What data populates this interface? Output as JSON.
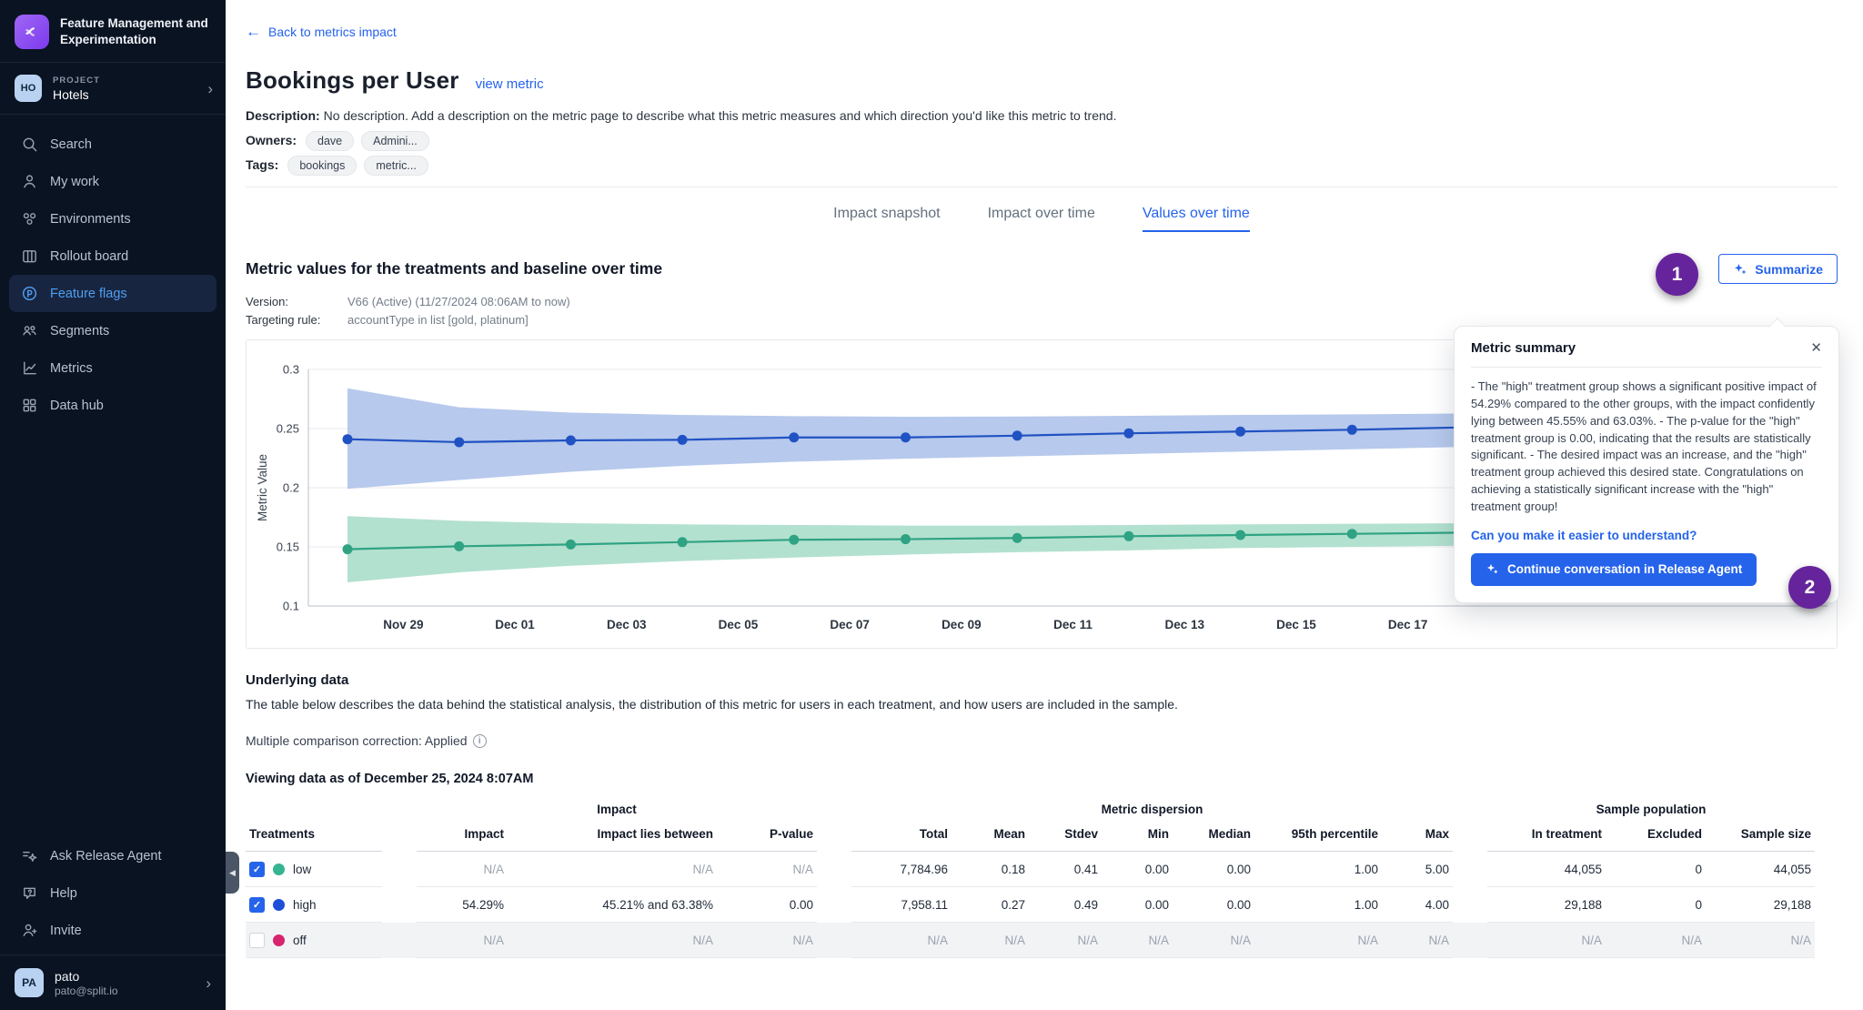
{
  "colors": {
    "accent_blue": "#2563eb",
    "sidebar_bg": "#0a1322",
    "sidebar_active_bg": "#182540",
    "sidebar_active_text": "#4f9ff2",
    "annotation_purple": "#66249c",
    "treatment_low": "#35b492",
    "treatment_high": "#1d4fd7",
    "treatment_off": "#d6246e"
  },
  "sidebar": {
    "brand": "Feature Management and Experimentation",
    "brand_icon": "split-logo-icon",
    "project": {
      "badge": "HO",
      "label": "PROJECT",
      "name": "Hotels",
      "chevron_icon": "chevron-right-icon"
    },
    "nav": [
      {
        "icon": "search-icon",
        "label": "Search",
        "active": false
      },
      {
        "icon": "my-work-icon",
        "label": "My work",
        "active": false
      },
      {
        "icon": "environments-icon",
        "label": "Environments",
        "active": false
      },
      {
        "icon": "rollout-board-icon",
        "label": "Rollout board",
        "active": false
      },
      {
        "icon": "feature-flags-icon",
        "label": "Feature flags",
        "active": true
      },
      {
        "icon": "segments-icon",
        "label": "Segments",
        "active": false
      },
      {
        "icon": "metrics-icon",
        "label": "Metrics",
        "active": false
      },
      {
        "icon": "data-hub-icon",
        "label": "Data hub",
        "active": false
      }
    ],
    "footer_nav": [
      {
        "icon": "ask-agent-icon",
        "label": "Ask Release Agent"
      },
      {
        "icon": "help-icon",
        "label": "Help"
      },
      {
        "icon": "invite-icon",
        "label": "Invite"
      }
    ],
    "user": {
      "initials": "PA",
      "name": "pato",
      "email": "pato@split.io"
    }
  },
  "header": {
    "back_link": "Back to metrics impact",
    "title": "Bookings per User",
    "view_metric": "view metric",
    "description_label": "Description:",
    "description": "No description. Add a description on the metric page to describe what this metric measures and which direction you'd like this metric to trend.",
    "owners_label": "Owners:",
    "owners": [
      "dave",
      "Admini..."
    ],
    "tags_label": "Tags:",
    "tags": [
      "bookings",
      "metric..."
    ]
  },
  "tabs": [
    {
      "label": "Impact snapshot",
      "active": false
    },
    {
      "label": "Impact over time",
      "active": false
    },
    {
      "label": "Values over time",
      "active": true
    }
  ],
  "section": {
    "title": "Metric values for the treatments and baseline over time",
    "summarize_label": "Summarize",
    "version_label": "Version:",
    "version_value": "V66 (Active) (11/27/2024 08:06AM to now)",
    "targeting_label": "Targeting rule:",
    "targeting_value": "accountType in list [gold, platinum]"
  },
  "annotations": {
    "badge1": "1",
    "badge2": "2"
  },
  "summary_popup": {
    "title": "Metric summary",
    "close_icon": "close-icon",
    "body": "- The \"high\" treatment group shows a significant positive impact of 54.29% compared to the other groups, with the impact confidently lying between 45.55% and 63.03%. - The p-value for the \"high\" treatment group is 0.00, indicating that the results are statistically significant. - The desired impact was an increase, and the \"high\" treatment group achieved this desired state. Congratulations on achieving a statistically significant increase with the \"high\" treatment group!",
    "question_link": "Can you make it easier to understand?",
    "cta_label": "Continue conversation in Release Agent",
    "cta_icon": "sparkles-icon"
  },
  "chart_data": {
    "type": "line",
    "title": "Metric values for the treatments and baseline over time",
    "xlabel": "",
    "ylabel": "Metric Value",
    "ylim": [
      0.1,
      0.3
    ],
    "yticks": [
      0.1,
      0.15,
      0.2,
      0.25,
      0.3
    ],
    "grid": true,
    "legend_position": "none",
    "x": [
      "Nov 28",
      "Nov 30",
      "Dec 02",
      "Dec 04",
      "Dec 06",
      "Dec 08",
      "Dec 10",
      "Dec 12",
      "Dec 14",
      "Dec 16",
      "Dec 18"
    ],
    "xtick_labels": [
      "Nov 29",
      "Dec 01",
      "Dec 03",
      "Dec 05",
      "Dec 07",
      "Dec 09",
      "Dec 11",
      "Dec 13",
      "Dec 15",
      "Dec 17"
    ],
    "series": [
      {
        "name": "high",
        "color": "#2152c3",
        "band_color": "#aabfe9",
        "values": [
          0.241,
          0.2385,
          0.24,
          0.2405,
          0.2425,
          0.2425,
          0.244,
          0.246,
          0.2475,
          0.249,
          0.251
        ],
        "upper": [
          0.284,
          0.268,
          0.2635,
          0.2615,
          0.2605,
          0.26,
          0.2602,
          0.2608,
          0.2615,
          0.262,
          0.2628
        ],
        "lower": [
          0.199,
          0.2065,
          0.2135,
          0.2185,
          0.222,
          0.2245,
          0.2265,
          0.2285,
          0.2305,
          0.2325,
          0.2345
        ]
      },
      {
        "name": "low",
        "color": "#2fa383",
        "band_color": "#a6dcc7",
        "values": [
          0.148,
          0.1505,
          0.152,
          0.154,
          0.156,
          0.1565,
          0.1575,
          0.159,
          0.16,
          0.161,
          0.162
        ],
        "upper": [
          0.176,
          0.172,
          0.17,
          0.169,
          0.1685,
          0.168,
          0.168,
          0.1685,
          0.169,
          0.1695,
          0.17
        ],
        "lower": [
          0.12,
          0.1285,
          0.134,
          0.138,
          0.141,
          0.1435,
          0.1455,
          0.147,
          0.149,
          0.15,
          0.151
        ]
      }
    ]
  },
  "underlying": {
    "title": "Underlying data",
    "description": "The table below describes the data behind the statistical analysis, the distribution of this metric for users in each treatment, and how users are included in the sample.",
    "correction": "Multiple comparison correction: Applied",
    "info_icon": "info-icon",
    "viewing": "Viewing data as of December 25, 2024 8:07AM"
  },
  "table": {
    "groups": [
      {
        "label": "",
        "span": 1
      },
      {
        "label": "Impact",
        "span": 3
      },
      {
        "label": "Metric dispersion",
        "span": 7
      },
      {
        "label": "Sample population",
        "span": 3
      }
    ],
    "columns": [
      "Treatments",
      "Impact",
      "Impact lies between",
      "P-value",
      "Total",
      "Mean",
      "Stdev",
      "Min",
      "Median",
      "95th percentile",
      "Max",
      "In treatment",
      "Excluded",
      "Sample size"
    ],
    "rows": [
      {
        "treatment": "low",
        "checked": true,
        "dot_color": "#35b492",
        "disabled": false,
        "values": [
          "N/A",
          "N/A",
          "N/A",
          "7,784.96",
          "0.18",
          "0.41",
          "0.00",
          "0.00",
          "1.00",
          "5.00",
          "44,055",
          "0",
          "44,055"
        ]
      },
      {
        "treatment": "high",
        "checked": true,
        "dot_color": "#1d4fd7",
        "disabled": false,
        "values": [
          "54.29%",
          "45.21% and 63.38%",
          "0.00",
          "7,958.11",
          "0.27",
          "0.49",
          "0.00",
          "0.00",
          "1.00",
          "4.00",
          "29,188",
          "0",
          "29,188"
        ]
      },
      {
        "treatment": "off",
        "checked": false,
        "dot_color": "#d6246e",
        "disabled": true,
        "values": [
          "N/A",
          "N/A",
          "N/A",
          "N/A",
          "N/A",
          "N/A",
          "N/A",
          "N/A",
          "N/A",
          "N/A",
          "N/A",
          "N/A",
          "N/A"
        ]
      }
    ]
  }
}
